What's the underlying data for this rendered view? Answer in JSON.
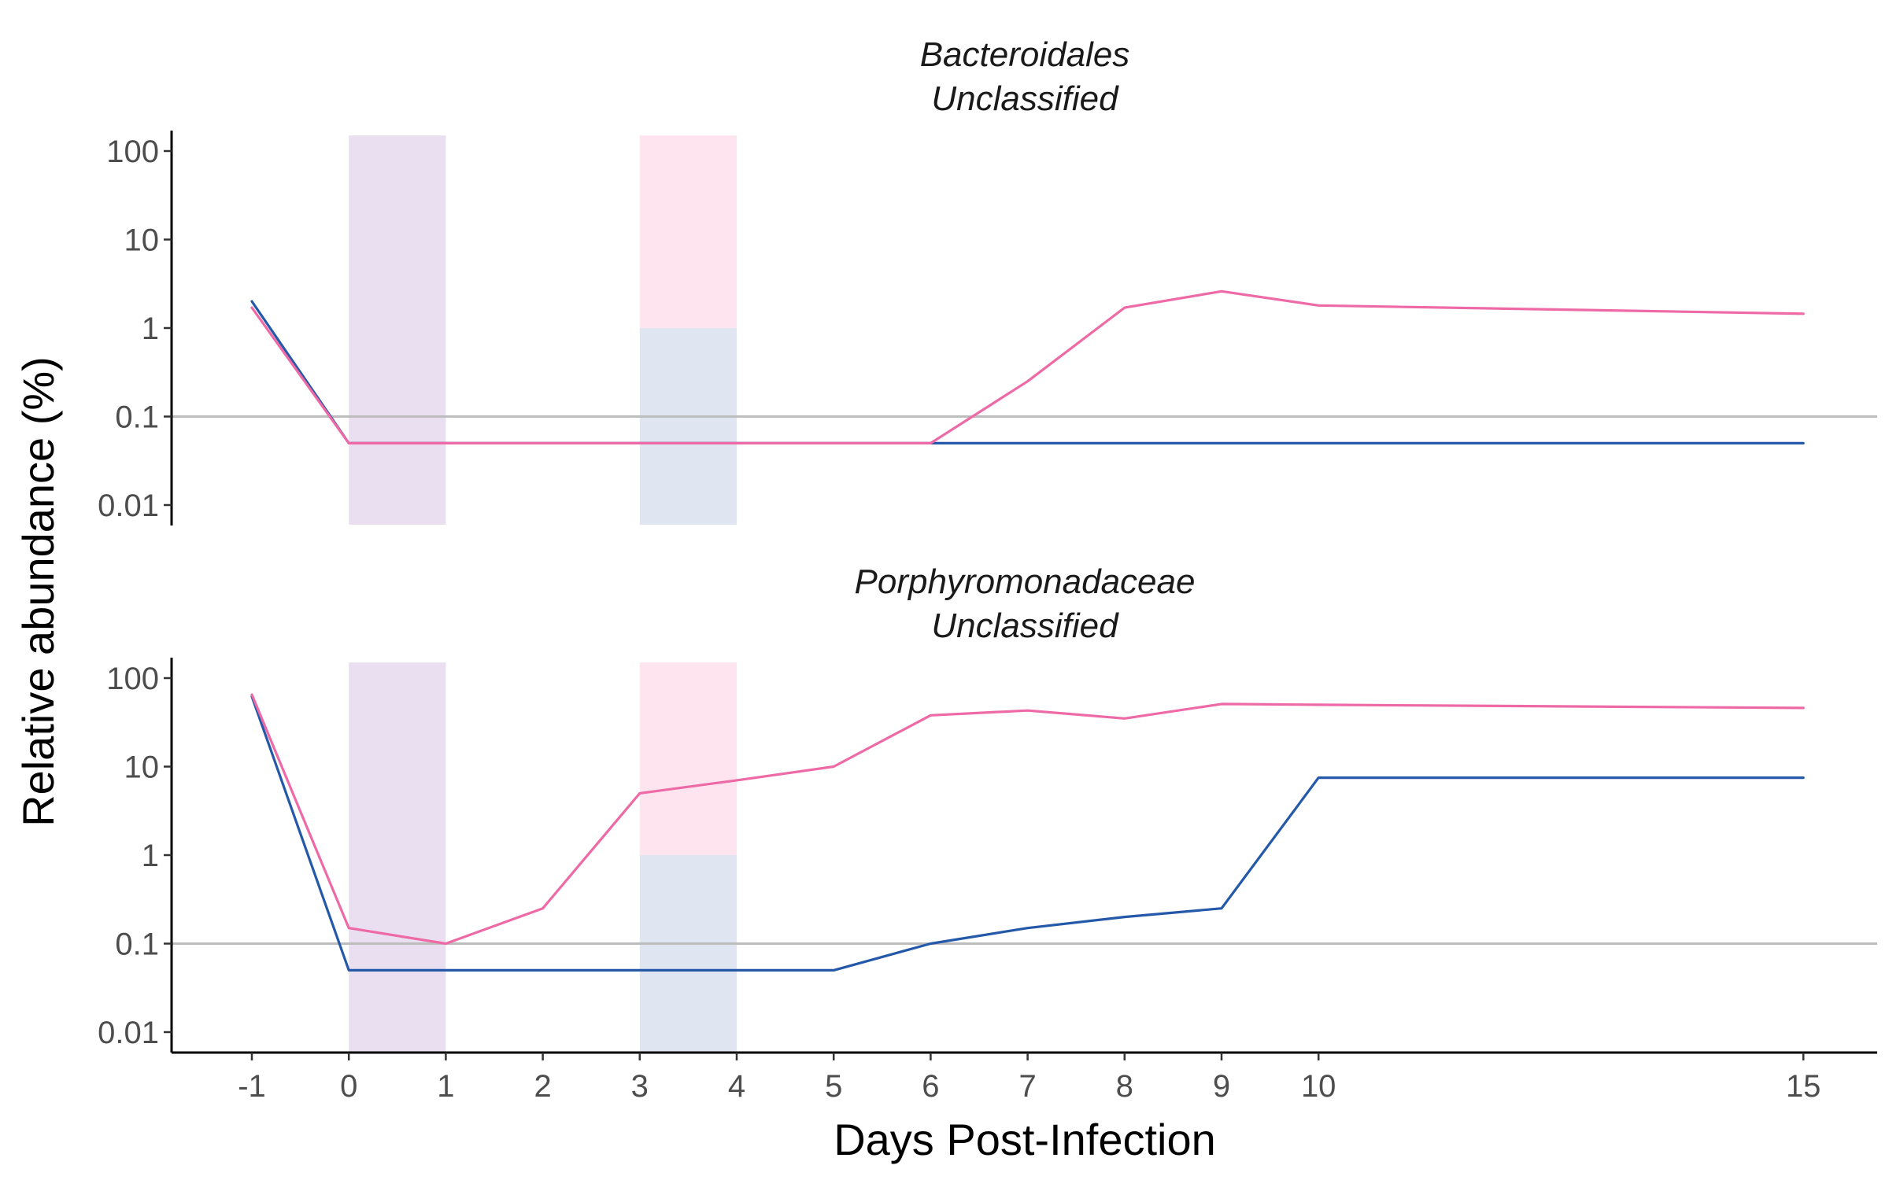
{
  "chart_data": {
    "type": "line",
    "xlabel": "Days Post-Infection",
    "ylabel": "Relative abundance (%)",
    "x_ticks": [
      -1,
      0,
      1,
      2,
      3,
      4,
      5,
      6,
      7,
      8,
      9,
      10,
      15
    ],
    "x_tick_labels": [
      "-1",
      "0",
      "1",
      "2",
      "3",
      "4",
      "5",
      "6",
      "7",
      "8",
      "9",
      "10",
      "15"
    ],
    "xlim": [
      -1.8,
      15.8
    ],
    "y_scale": "log",
    "ylim": [
      0.006,
      150
    ],
    "y_ticks": [
      0.01,
      0.1,
      1,
      10,
      100
    ],
    "y_tick_labels": [
      "0.01",
      "0.1",
      "1",
      "10",
      "100"
    ],
    "reference_line_y": 0.1,
    "grid": false,
    "legend": "none",
    "colors": {
      "blue_series": "#2458a8",
      "pink_series": "#ee6aa6",
      "shade_purple": "#eadff0",
      "shade_pink": "#fde4ef",
      "shade_blue": "#dfe6f1",
      "reference_line": "#bdbdbd"
    },
    "shaded_regions": [
      {
        "x": [
          0,
          1
        ],
        "y": [
          0.006,
          150
        ],
        "color_key": "shade_purple"
      },
      {
        "x": [
          3,
          4
        ],
        "y": [
          1,
          150
        ],
        "color_key": "shade_pink"
      },
      {
        "x": [
          3,
          4
        ],
        "y": [
          0.006,
          1
        ],
        "color_key": "shade_blue"
      }
    ],
    "panels": [
      {
        "title_lines": [
          "Bacteroidales",
          "Unclassified"
        ],
        "series": [
          {
            "color_key": "blue_series",
            "x": [
              -1,
              0,
              1,
              2,
              3,
              4,
              5,
              6,
              7,
              8,
              9,
              10,
              15
            ],
            "y": [
              2.0,
              0.05,
              0.05,
              0.05,
              0.05,
              0.05,
              0.05,
              0.05,
              0.05,
              0.05,
              0.05,
              0.05,
              0.05
            ]
          },
          {
            "color_key": "pink_series",
            "x": [
              -1,
              0,
              1,
              2,
              3,
              4,
              5,
              6,
              7,
              8,
              9,
              10,
              15
            ],
            "y": [
              1.7,
              0.05,
              0.05,
              0.05,
              0.05,
              0.05,
              0.05,
              0.05,
              0.25,
              1.7,
              2.6,
              1.8,
              1.45
            ]
          }
        ]
      },
      {
        "title_lines": [
          "Porphyromonadaceae",
          "Unclassified"
        ],
        "series": [
          {
            "color_key": "blue_series",
            "x": [
              -1,
              0,
              1,
              2,
              3,
              4,
              5,
              6,
              7,
              8,
              9,
              10,
              15
            ],
            "y": [
              62,
              0.05,
              0.05,
              0.05,
              0.05,
              0.05,
              0.05,
              0.1,
              0.15,
              0.2,
              0.25,
              7.5,
              7.5
            ]
          },
          {
            "color_key": "pink_series",
            "x": [
              -1,
              0,
              1,
              2,
              3,
              4,
              5,
              6,
              7,
              8,
              9,
              10,
              15
            ],
            "y": [
              65,
              0.15,
              0.1,
              0.25,
              5,
              7,
              10,
              38,
              43,
              35,
              51,
              50,
              46
            ]
          }
        ]
      }
    ]
  }
}
